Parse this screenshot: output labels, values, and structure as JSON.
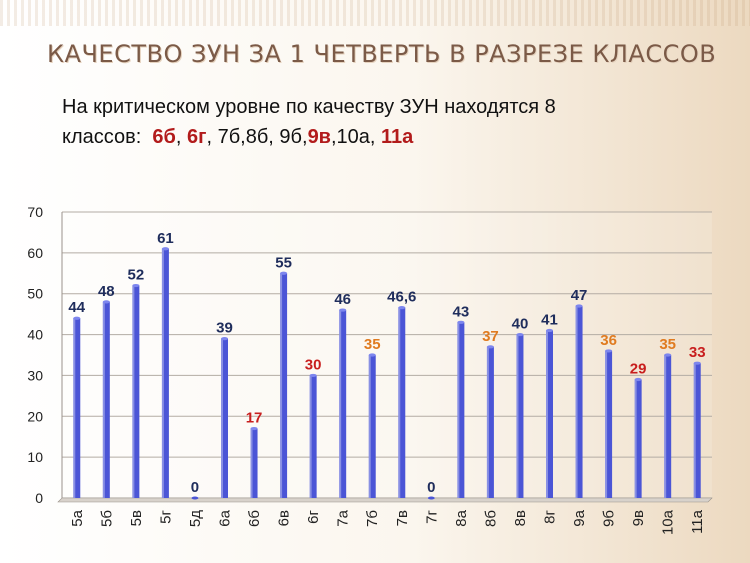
{
  "slide": {
    "title": "КАЧЕСТВО ЗУН ЗА 1 ЧЕТВЕРТЬ В РАЗРЕЗЕ КЛАССОВ",
    "subtitle": {
      "line1": "На критическом  уровне  по  качеству ЗУН находятся 8",
      "prefix": "классов:",
      "parts": [
        {
          "text": "6б",
          "red": true
        },
        {
          "text": ", ",
          "red": false
        },
        {
          "text": "6г",
          "red": true
        },
        {
          "text": ", 7б,8б, 9б,",
          "red": false
        },
        {
          "text": "9в",
          "red": true
        },
        {
          "text": ",10а, ",
          "red": false
        },
        {
          "text": "11а",
          "red": true
        }
      ]
    }
  },
  "chart_data": {
    "type": "bar",
    "categories": [
      "5а",
      "5б",
      "5в",
      "5г",
      "5д",
      "6а",
      "6б",
      "6в",
      "6г",
      "7а",
      "7б",
      "7в",
      "7г",
      "8а",
      "8б",
      "8в",
      "8г",
      "9а",
      "9б",
      "9в",
      "10а",
      "11а"
    ],
    "values": [
      44,
      48,
      52,
      61,
      0,
      39,
      17,
      55,
      30,
      46,
      35,
      46.6,
      0,
      43,
      37,
      40,
      41,
      47,
      36,
      29,
      35,
      33
    ],
    "data_labels": [
      "44",
      "48",
      "52",
      "61",
      "0",
      "39",
      "17",
      "55",
      "30",
      "46",
      "35",
      "46,6",
      "0",
      "43",
      "37",
      "40",
      "41",
      "47",
      "36",
      "29",
      "35",
      "33"
    ],
    "label_colors": [
      "#1f2d5c",
      "#1f2d5c",
      "#1f2d5c",
      "#1f2d5c",
      "#1f2d5c",
      "#1f2d5c",
      "#c81e1e",
      "#1f2d5c",
      "#c81e1e",
      "#1f2d5c",
      "#e07b20",
      "#1f2d5c",
      "#1f2d5c",
      "#1f2d5c",
      "#e07b20",
      "#1f2d5c",
      "#1f2d5c",
      "#1f2d5c",
      "#e07b20",
      "#c81e1e",
      "#e07b20",
      "#c81e1e"
    ],
    "ylim": [
      0,
      70
    ],
    "yticks": [
      "0",
      "10",
      "20",
      "30",
      "40",
      "50",
      "60",
      "70"
    ],
    "grid": true,
    "bar_color": "#4b55d6"
  }
}
